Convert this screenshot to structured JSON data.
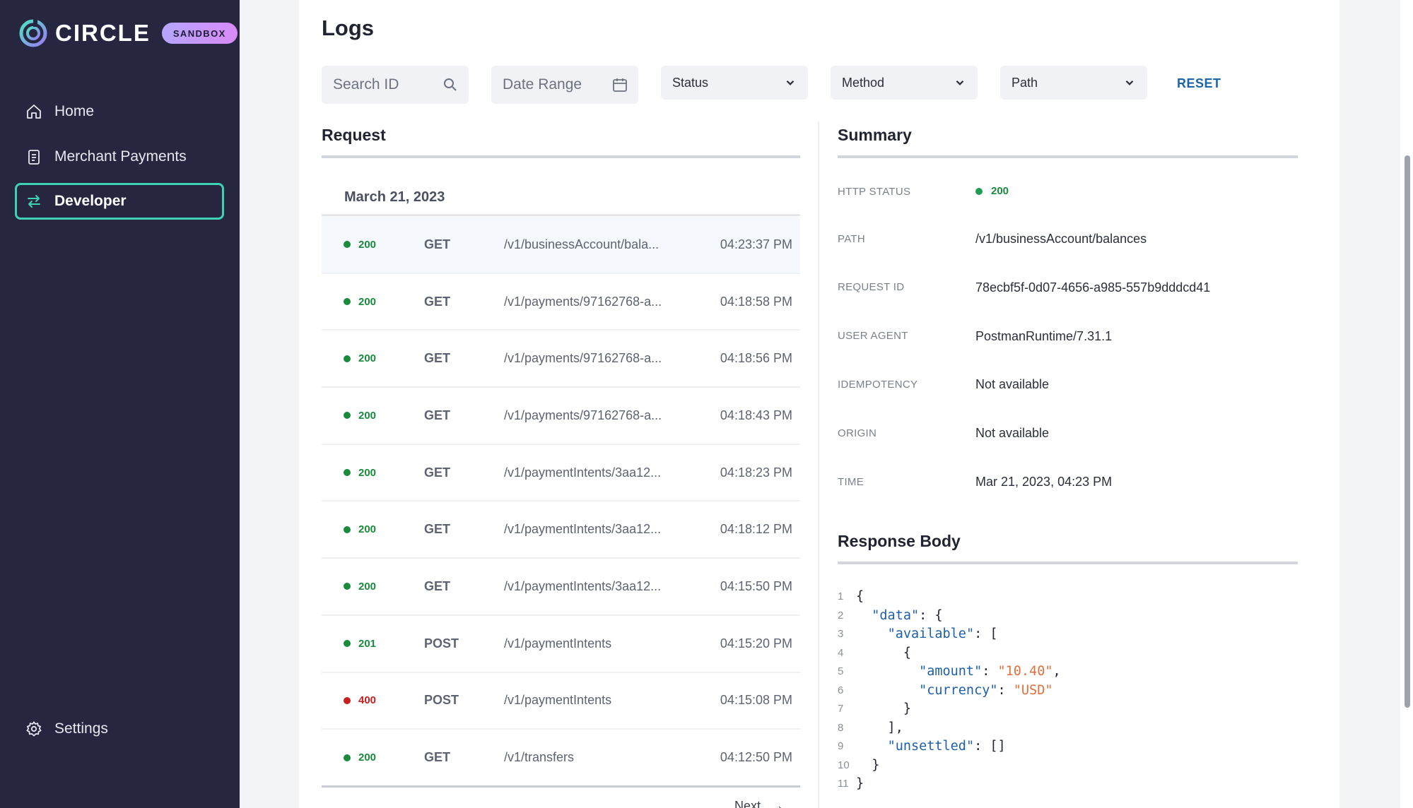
{
  "colors": {
    "sidebar_bg": "#262640",
    "accent": "#3fd1b4",
    "success": "#1a8a3d",
    "error": "#c81e1e",
    "link": "#1f63a8"
  },
  "brand": {
    "name": "CIRCLE",
    "badge": "SANDBOX"
  },
  "nav": {
    "items": [
      {
        "label": "Home",
        "icon": "home-icon"
      },
      {
        "label": "Merchant Payments",
        "icon": "clipboard-icon"
      },
      {
        "label": "Developer",
        "icon": "swap-arrows-icon",
        "active": true
      }
    ],
    "settings": {
      "label": "Settings",
      "icon": "gear-icon"
    }
  },
  "page": {
    "title": "Logs"
  },
  "filters": {
    "search_placeholder": "Search ID",
    "date_placeholder": "Date Range",
    "status": "Status",
    "method": "Method",
    "path": "Path",
    "reset": "RESET"
  },
  "request": {
    "heading": "Request",
    "date": "March 21, 2023",
    "rows": [
      {
        "status": "200",
        "method": "GET",
        "path": "/v1/businessAccount/bala...",
        "time": "04:23:37 PM"
      },
      {
        "status": "200",
        "method": "GET",
        "path": "/v1/payments/97162768-a...",
        "time": "04:18:58 PM"
      },
      {
        "status": "200",
        "method": "GET",
        "path": "/v1/payments/97162768-a...",
        "time": "04:18:56 PM"
      },
      {
        "status": "200",
        "method": "GET",
        "path": "/v1/payments/97162768-a...",
        "time": "04:18:43 PM"
      },
      {
        "status": "200",
        "method": "GET",
        "path": "/v1/paymentIntents/3aa12...",
        "time": "04:18:23 PM"
      },
      {
        "status": "200",
        "method": "GET",
        "path": "/v1/paymentIntents/3aa12...",
        "time": "04:18:12 PM"
      },
      {
        "status": "200",
        "method": "GET",
        "path": "/v1/paymentIntents/3aa12...",
        "time": "04:15:50 PM"
      },
      {
        "status": "201",
        "method": "POST",
        "path": "/v1/paymentIntents",
        "time": "04:15:20 PM"
      },
      {
        "status": "400",
        "method": "POST",
        "path": "/v1/paymentIntents",
        "time": "04:15:08 PM"
      },
      {
        "status": "200",
        "method": "GET",
        "path": "/v1/transfers",
        "time": "04:12:50 PM"
      }
    ],
    "next": "Next"
  },
  "summary": {
    "heading": "Summary",
    "http_status_label": "HTTP STATUS",
    "http_status": "200",
    "path_label": "PATH",
    "path": "/v1/businessAccount/balances",
    "request_id_label": "REQUEST ID",
    "request_id": "78ecbf5f-0d07-4656-a985-557b9dddcd41",
    "user_agent_label": "USER AGENT",
    "user_agent": "PostmanRuntime/7.31.1",
    "idempotency_label": "IDEMPOTENCY",
    "idempotency": "Not available",
    "origin_label": "ORIGIN",
    "origin": "Not available",
    "time_label": "TIME",
    "time": "Mar 21, 2023, 04:23 PM"
  },
  "response": {
    "heading": "Response Body",
    "lines": [
      [
        [
          "p",
          "{"
        ]
      ],
      [
        [
          "p",
          "  "
        ],
        [
          "k",
          "\"data\""
        ],
        [
          "p",
          ": {"
        ]
      ],
      [
        [
          "p",
          "    "
        ],
        [
          "k",
          "\"available\""
        ],
        [
          "p",
          ": ["
        ]
      ],
      [
        [
          "p",
          "      {"
        ]
      ],
      [
        [
          "p",
          "        "
        ],
        [
          "k",
          "\"amount\""
        ],
        [
          "p",
          ": "
        ],
        [
          "s",
          "\"10.40\""
        ],
        [
          "p",
          ","
        ]
      ],
      [
        [
          "p",
          "        "
        ],
        [
          "k",
          "\"currency\""
        ],
        [
          "p",
          ": "
        ],
        [
          "s",
          "\"USD\""
        ]
      ],
      [
        [
          "p",
          "      }"
        ]
      ],
      [
        [
          "p",
          "    ],"
        ]
      ],
      [
        [
          "p",
          "    "
        ],
        [
          "k",
          "\"unsettled\""
        ],
        [
          "p",
          ": []"
        ]
      ],
      [
        [
          "p",
          "  }"
        ]
      ],
      [
        [
          "p",
          "}"
        ]
      ]
    ]
  }
}
